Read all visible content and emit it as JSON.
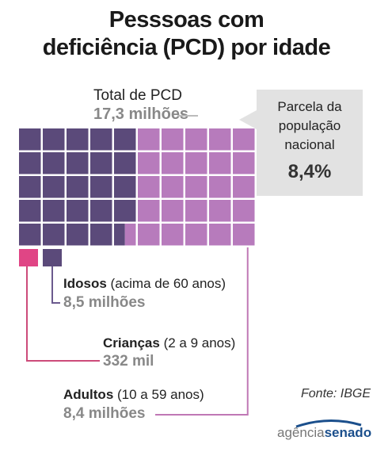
{
  "title": {
    "line1": "Pesssoas com",
    "line2": "deficiência (PCD) por idade"
  },
  "total": {
    "label": "Total de PCD",
    "value": "17,3 milhões"
  },
  "share": {
    "label_line1": "Parcela da",
    "label_line2": "população",
    "label_line3": "nacional",
    "value": "8,4%"
  },
  "source": "Fonte: IBGE",
  "logo": {
    "part1": "agência",
    "part2": "senado"
  },
  "colors": {
    "idosos": "#5b4a7a",
    "criancas": "#e04585",
    "adultos": "#b77bbc",
    "line_criancas": "#cd4b7a",
    "line_idosos": "#6b5a8e",
    "line_adultos": "#c078b5"
  },
  "chart_data": {
    "type": "waffle",
    "title": "Pesssoas com deficiência (PCD) por idade",
    "unit": "milhões",
    "series": [
      {
        "name": "Idosos",
        "qualifier": "(acima de 60 anos)",
        "value_label": "8,5 milhões",
        "value": 8.5,
        "color": "#5b4a7a"
      },
      {
        "name": "Crianças",
        "qualifier": "(2 a 9 anos)",
        "value_label": "332 mil",
        "value": 0.332,
        "color": "#e04585"
      },
      {
        "name": "Adultos",
        "qualifier": "(10 a 59 anos)",
        "value_label": "8,4 milhões",
        "value": 8.4,
        "color": "#b77bbc"
      }
    ]
  }
}
